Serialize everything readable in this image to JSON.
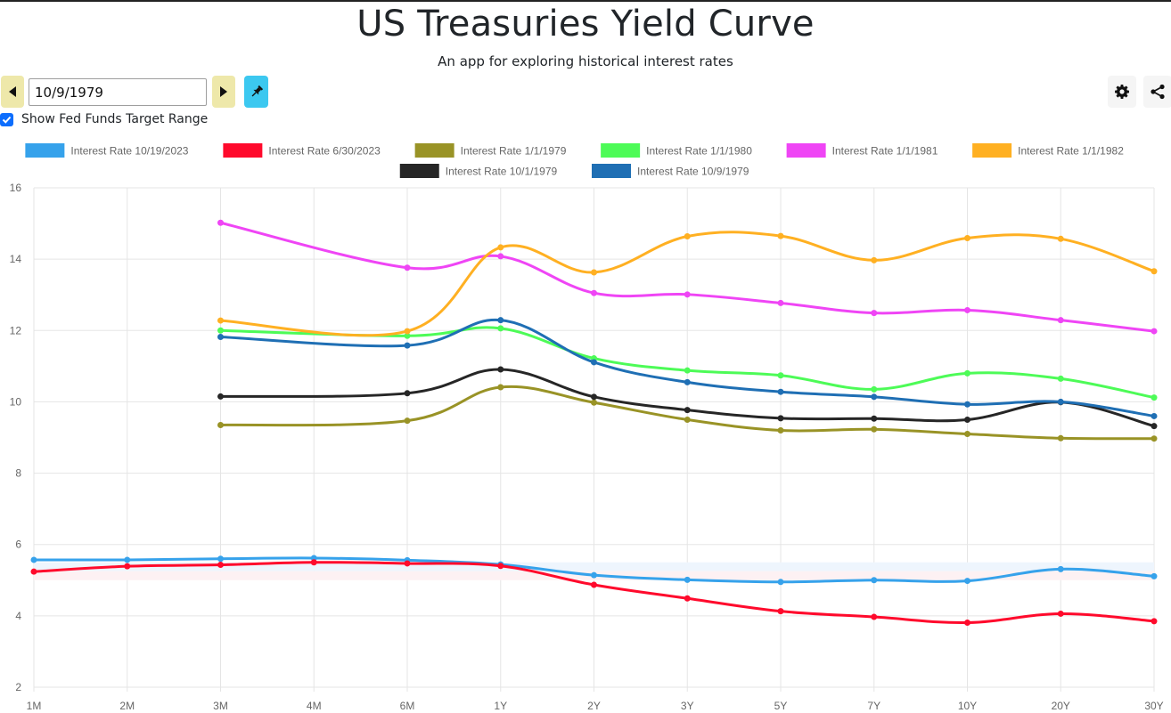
{
  "header": {
    "title": "US Treasuries Yield Curve",
    "subtitle": "An app for exploring historical interest rates"
  },
  "controls": {
    "date_value": "10/9/1979",
    "prev_icon": "caret-left-icon",
    "next_icon": "caret-right-icon",
    "pin_icon": "pin-icon",
    "settings_icon": "gear-icon",
    "share_icon": "share-icon",
    "fed_funds_label": "Show Fed Funds Target Range",
    "fed_funds_checked": true
  },
  "chart_data": {
    "type": "line",
    "title": "",
    "xlabel": "",
    "ylabel": "",
    "categories": [
      "1M",
      "2M",
      "3M",
      "4M",
      "6M",
      "1Y",
      "2Y",
      "3Y",
      "5Y",
      "7Y",
      "10Y",
      "20Y",
      "30Y"
    ],
    "ylim": [
      2,
      16
    ],
    "yticks": [
      2,
      4,
      6,
      8,
      10,
      12,
      14,
      16
    ],
    "grid": true,
    "legend_position": "top-center",
    "fed_funds_bands": [
      {
        "low": 5.25,
        "high": 5.5,
        "color": "#eef5fd"
      },
      {
        "low": 5.0,
        "high": 5.25,
        "color": "#fdf1f3"
      }
    ],
    "series": [
      {
        "name": "Interest Rate 10/19/2023",
        "color": "#36a2eb",
        "values": [
          5.57,
          5.57,
          5.6,
          5.62,
          5.56,
          5.44,
          5.14,
          5.01,
          4.95,
          5.0,
          4.98,
          5.31,
          5.11
        ]
      },
      {
        "name": "Interest Rate 6/30/2023",
        "color": "#ff0a2c",
        "values": [
          5.24,
          5.39,
          5.43,
          5.5,
          5.47,
          5.4,
          4.87,
          4.49,
          4.13,
          3.97,
          3.81,
          4.06,
          3.85
        ]
      },
      {
        "name": "Interest Rate 1/1/1979",
        "color": "#999326",
        "values": [
          null,
          null,
          9.35,
          null,
          9.47,
          10.41,
          9.98,
          9.5,
          9.2,
          9.23,
          9.1,
          8.98,
          8.97
        ]
      },
      {
        "name": "Interest Rate 1/1/1980",
        "color": "#4dfb57",
        "values": [
          null,
          null,
          12.0,
          null,
          11.85,
          12.06,
          11.22,
          10.88,
          10.74,
          10.35,
          10.8,
          10.65,
          10.12
        ]
      },
      {
        "name": "Interest Rate 1/1/1981",
        "color": "#ef45f5",
        "values": [
          null,
          null,
          15.02,
          null,
          13.76,
          14.08,
          13.05,
          13.01,
          12.77,
          12.49,
          12.57,
          12.29,
          11.98
        ]
      },
      {
        "name": "Interest Rate 1/1/1982",
        "color": "#ffb022",
        "values": [
          null,
          null,
          12.28,
          null,
          11.98,
          14.33,
          13.63,
          14.64,
          14.65,
          13.97,
          14.59,
          14.57,
          13.66
        ]
      },
      {
        "name": "Interest Rate 10/1/1979",
        "color": "#262626",
        "values": [
          null,
          null,
          10.15,
          null,
          10.24,
          10.91,
          10.14,
          9.77,
          9.54,
          9.53,
          9.5,
          9.99,
          9.32
        ]
      },
      {
        "name": "Interest Rate 10/9/1979",
        "color": "#1f6fb4",
        "values": [
          null,
          null,
          11.82,
          null,
          11.58,
          12.29,
          11.11,
          10.55,
          10.28,
          10.14,
          9.93,
          10.0,
          9.6
        ]
      }
    ]
  }
}
